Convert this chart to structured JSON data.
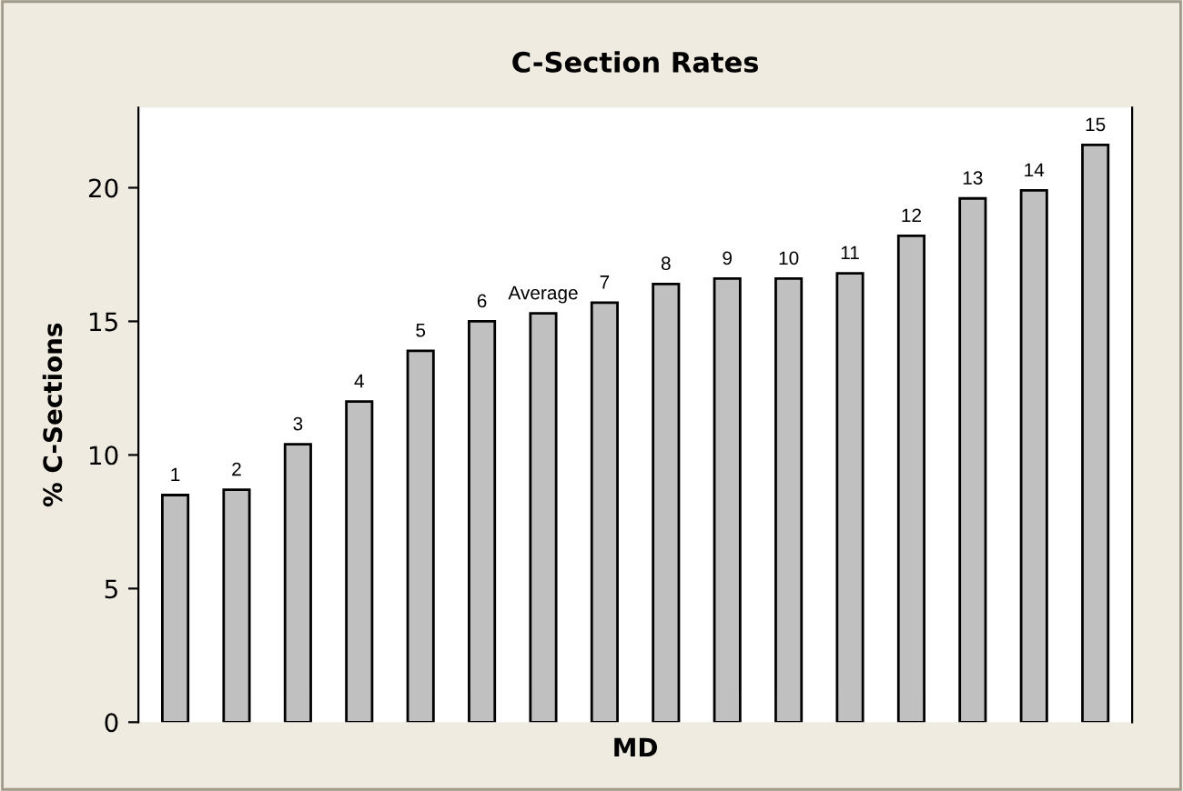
{
  "chart_data": {
    "type": "bar",
    "title": "C-Section Rates",
    "xlabel": "MD",
    "ylabel": "% C-Sections",
    "categories": [
      "1",
      "2",
      "3",
      "4",
      "5",
      "6",
      "Average",
      "7",
      "8",
      "9",
      "10",
      "11",
      "12",
      "13",
      "14",
      "15"
    ],
    "values": [
      8.5,
      8.7,
      10.4,
      12.0,
      13.9,
      15.0,
      15.3,
      15.7,
      16.4,
      16.6,
      16.6,
      16.8,
      18.2,
      19.6,
      19.9,
      21.6
    ],
    "color": "#c0c0c0",
    "ylim": [
      0,
      23
    ],
    "yticks": [
      0,
      5,
      10,
      15,
      20
    ],
    "grid": false
  }
}
